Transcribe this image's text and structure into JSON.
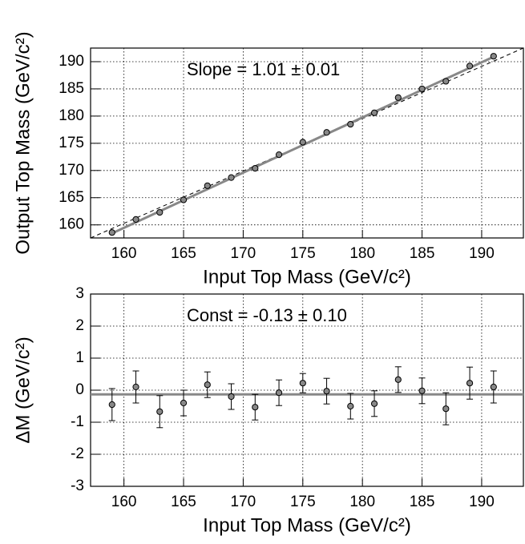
{
  "chart_data": [
    {
      "type": "scatter",
      "xlabel": "Input Top Mass (GeV/c²)",
      "ylabel": "Output Top Mass (GeV/c²)",
      "annotation": "Slope = 1.01 ± 0.01",
      "xlim": [
        157.2,
        193.5
      ],
      "ylim": [
        157.6,
        192.5
      ],
      "xticks": [
        160,
        165,
        170,
        175,
        180,
        185,
        190
      ],
      "yticks": [
        160,
        165,
        170,
        175,
        180,
        185,
        190
      ],
      "grid": true,
      "series": [
        {
          "mode": "line",
          "dash": true,
          "color": "#000000",
          "x": [
            157.2,
            193.5
          ],
          "values": [
            157.6,
            192.5
          ]
        },
        {
          "mode": "line",
          "dash": false,
          "color": "#888888",
          "x": [
            159,
            191
          ],
          "values": [
            158.45,
            190.9
          ]
        },
        {
          "mode": "points",
          "color": "#888888",
          "x": [
            159,
            161,
            163,
            165,
            167,
            169,
            171,
            173,
            175,
            177,
            179,
            181,
            183,
            185,
            187,
            189,
            191
          ],
          "values": [
            158.6,
            161,
            162.3,
            164.6,
            167.2,
            168.7,
            170.4,
            172.9,
            175.2,
            177,
            178.5,
            180.6,
            183.4,
            185,
            186.4,
            189.2,
            191
          ]
        }
      ]
    },
    {
      "type": "scatter",
      "xlabel": "Input Top Mass (GeV/c²)",
      "ylabel": "ΔM (GeV/c²)",
      "annotation": "Const = -0.13 ± 0.10",
      "xlim": [
        157.2,
        193.5
      ],
      "ylim": [
        -3,
        3
      ],
      "xticks": [
        160,
        165,
        170,
        175,
        180,
        185,
        190
      ],
      "yticks": [
        -3,
        -2,
        -1,
        0,
        1,
        2,
        3
      ],
      "grid": true,
      "series": [
        {
          "mode": "line",
          "dash": false,
          "color": "#888888",
          "x": [
            157.2,
            193.5
          ],
          "values": [
            -0.13,
            -0.13
          ]
        },
        {
          "mode": "points",
          "color": "#888888",
          "x": [
            159,
            161,
            163,
            165,
            167,
            169,
            171,
            173,
            175,
            177,
            179,
            181,
            183,
            185,
            187,
            189,
            191
          ],
          "values": [
            -0.45,
            0.1,
            -0.67,
            -0.4,
            0.17,
            -0.2,
            -0.53,
            -0.08,
            0.22,
            -0.03,
            -0.5,
            -0.42,
            0.33,
            -0.02,
            -0.58,
            0.22,
            0.1
          ],
          "errors": [
            0.5,
            0.5,
            0.5,
            0.4,
            0.4,
            0.4,
            0.4,
            0.4,
            0.3,
            0.4,
            0.4,
            0.4,
            0.4,
            0.4,
            0.5,
            0.5,
            0.5
          ]
        }
      ]
    }
  ]
}
